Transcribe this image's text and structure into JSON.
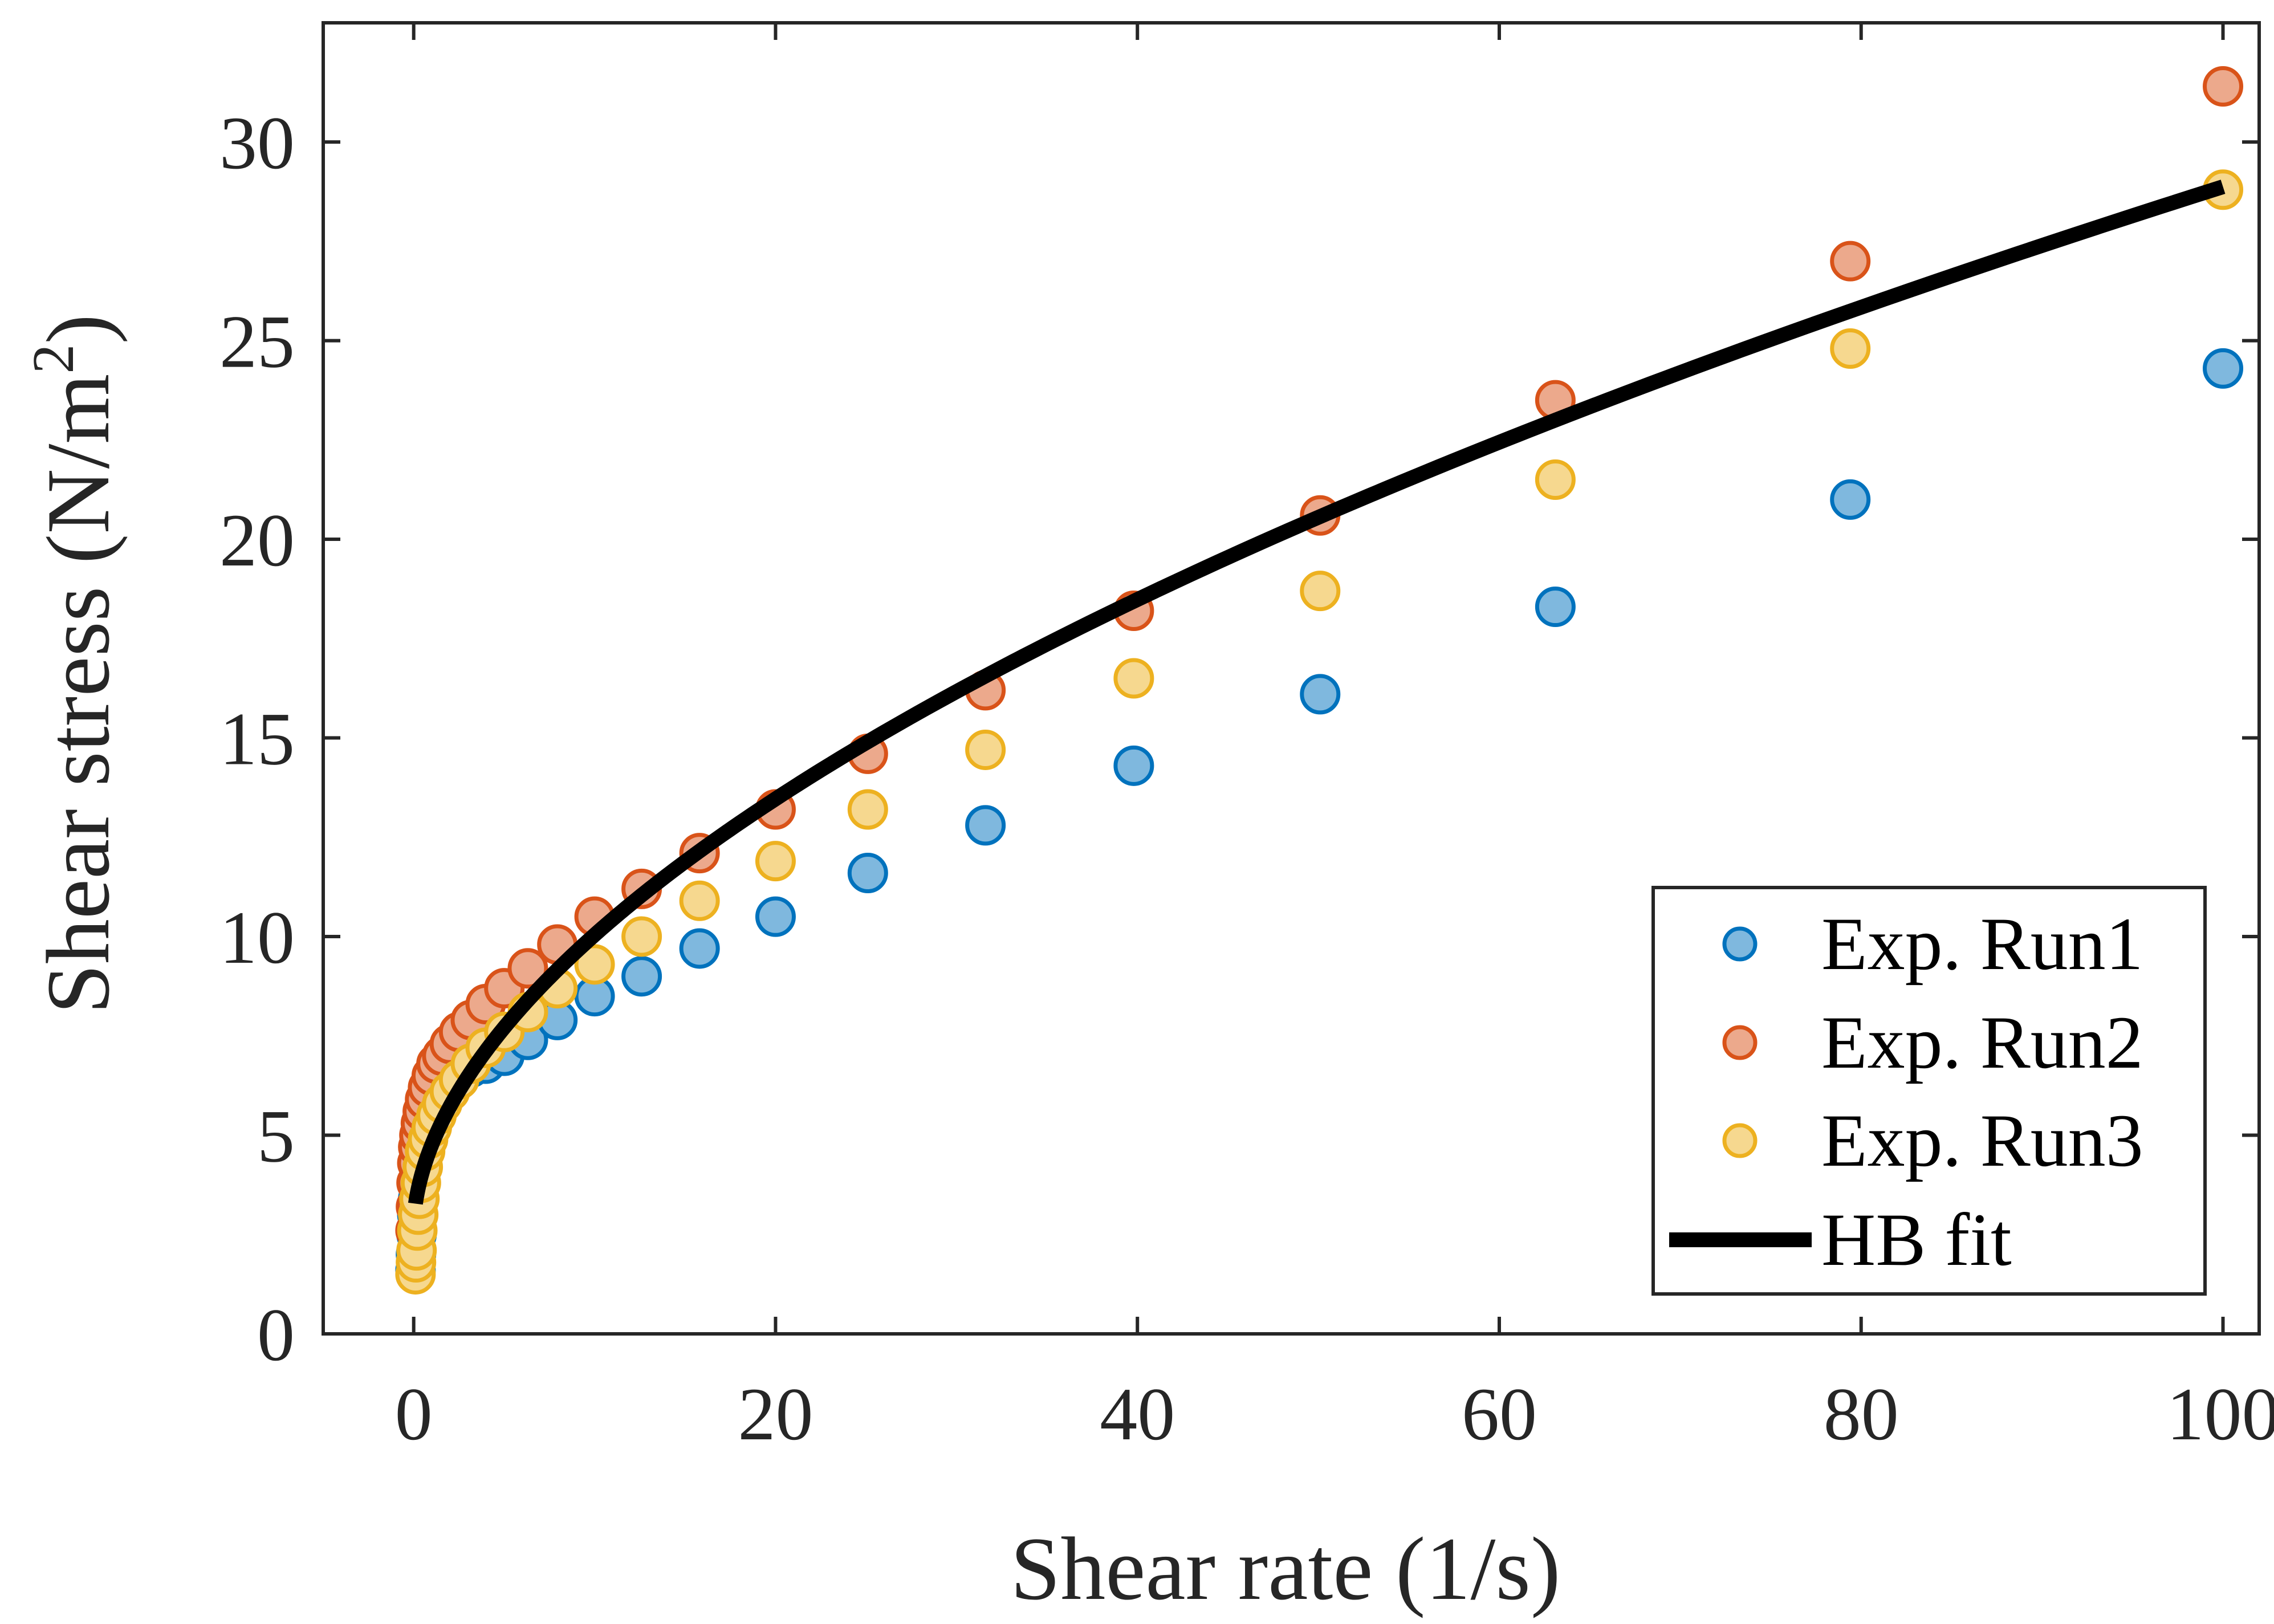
{
  "chart_data": {
    "type": "scatter",
    "title": "",
    "xlabel": "Shear rate (1/s)",
    "ylabel_main": "Shear stress (N/m",
    "ylabel_sup": "2",
    "ylabel_close": ")",
    "xlim": [
      -5,
      102
    ],
    "ylim": [
      0,
      33
    ],
    "xticks": [
      0,
      20,
      40,
      60,
      80,
      100
    ],
    "yticks": [
      0,
      5,
      10,
      15,
      20,
      25,
      30
    ],
    "xtick_labels": [
      "0",
      "20",
      "40",
      "60",
      "80",
      "100"
    ],
    "ytick_labels": [
      "0",
      "5",
      "10",
      "15",
      "20",
      "25",
      "30"
    ],
    "legend_position": "bottom-right",
    "series": [
      {
        "name": "Exp. Run1",
        "marker": "circle",
        "edge_color": "#0072BD",
        "fill_color": "#7FB8DE",
        "x": [
          0.1,
          0.126,
          0.158,
          0.2,
          0.251,
          0.316,
          0.398,
          0.501,
          0.631,
          0.794,
          1.0,
          1.26,
          1.58,
          2.0,
          2.51,
          3.16,
          3.98,
          5.01,
          6.31,
          7.94,
          10.0,
          12.6,
          15.8,
          20.0,
          25.1,
          31.6,
          39.8,
          50.1,
          63.1,
          79.4,
          100.0
        ],
        "y": [
          1.6,
          2.0,
          2.5,
          3.0,
          3.4,
          3.8,
          4.2,
          4.5,
          4.8,
          5.1,
          5.4,
          5.7,
          5.9,
          6.2,
          6.5,
          6.7,
          6.8,
          7.0,
          7.4,
          7.9,
          8.5,
          9.0,
          9.7,
          10.5,
          11.6,
          12.8,
          14.3,
          16.1,
          18.3,
          21.0,
          24.3
        ]
      },
      {
        "name": "Exp. Run2",
        "marker": "circle",
        "edge_color": "#D95319",
        "fill_color": "#ECA98C",
        "x": [
          0.1,
          0.126,
          0.158,
          0.2,
          0.251,
          0.316,
          0.398,
          0.501,
          0.631,
          0.794,
          1.0,
          1.26,
          1.58,
          2.0,
          2.51,
          3.16,
          3.98,
          5.01,
          6.31,
          7.94,
          10.0,
          12.6,
          15.8,
          20.0,
          25.1,
          31.6,
          39.8,
          50.1,
          63.1,
          79.4,
          100.0
        ],
        "y": [
          2.6,
          3.2,
          3.8,
          4.3,
          4.7,
          5.0,
          5.3,
          5.6,
          5.9,
          6.2,
          6.5,
          6.8,
          7.0,
          7.3,
          7.6,
          7.9,
          8.3,
          8.7,
          9.2,
          9.8,
          10.5,
          11.2,
          12.1,
          13.2,
          14.6,
          16.2,
          18.2,
          20.6,
          23.5,
          27.0,
          31.4
        ]
      },
      {
        "name": "Exp. Run3",
        "marker": "circle",
        "edge_color": "#EDB120",
        "fill_color": "#F6D88F",
        "x": [
          0.1,
          0.126,
          0.158,
          0.2,
          0.251,
          0.316,
          0.398,
          0.501,
          0.631,
          0.794,
          1.0,
          1.26,
          1.58,
          2.0,
          2.51,
          3.16,
          3.98,
          5.01,
          6.31,
          7.94,
          10.0,
          12.6,
          15.8,
          20.0,
          25.1,
          31.6,
          39.8,
          50.1,
          63.1,
          79.4,
          100.0
        ],
        "y": [
          1.5,
          1.8,
          2.1,
          2.6,
          3.0,
          3.4,
          3.8,
          4.2,
          4.6,
          4.9,
          5.2,
          5.5,
          5.8,
          6.1,
          6.4,
          6.8,
          7.2,
          7.6,
          8.1,
          8.7,
          9.3,
          10.0,
          10.9,
          11.9,
          13.2,
          14.7,
          16.5,
          18.7,
          21.5,
          24.8,
          28.8
        ]
      }
    ],
    "fit": {
      "name": "HB fit",
      "color": "#000000",
      "model": "Herschel-Bulkley",
      "tau0": 2.7,
      "k": 2.06,
      "n": 0.552,
      "x_start": 0.1,
      "x_end": 100
    }
  }
}
